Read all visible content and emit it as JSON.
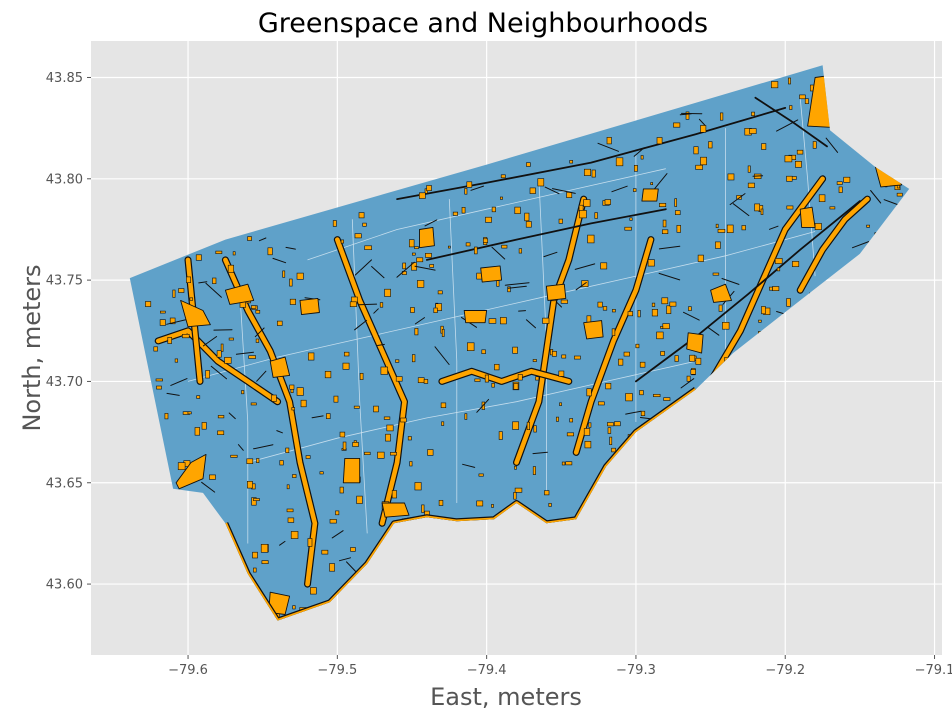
{
  "chart_data": {
    "type": "map",
    "title": "Greenspace and Neighbourhoods",
    "xlabel": "East, meters",
    "ylabel": "North, meters",
    "xlim": [
      -79.665,
      -79.095
    ],
    "ylim": [
      43.565,
      43.868
    ],
    "xticks": [
      {
        "value": -79.6,
        "label": "−79.6"
      },
      {
        "value": -79.5,
        "label": "−79.5"
      },
      {
        "value": -79.4,
        "label": "−79.4"
      },
      {
        "value": -79.3,
        "label": "−79.3"
      },
      {
        "value": -79.2,
        "label": "−79.2"
      },
      {
        "value": -79.1,
        "label": "−79.1"
      }
    ],
    "yticks": [
      {
        "value": 43.6,
        "label": "43.60"
      },
      {
        "value": 43.65,
        "label": "43.65"
      },
      {
        "value": 43.7,
        "label": "43.70"
      },
      {
        "value": 43.75,
        "label": "43.75"
      },
      {
        "value": 43.8,
        "label": "43.80"
      },
      {
        "value": 43.85,
        "label": "43.85"
      }
    ],
    "grid": true,
    "layers": [
      {
        "name": "neighbourhoods",
        "color": "#5fa1c9",
        "edgecolor": "#d6e7f3"
      },
      {
        "name": "greenspace",
        "color": "#ffa500",
        "edgecolor": "#111111"
      }
    ],
    "background": "#e5e5e5",
    "boundary": [
      [
        -79.639,
        43.751
      ],
      [
        -79.575,
        43.77
      ],
      [
        -79.4,
        43.807
      ],
      [
        -79.175,
        43.856
      ],
      [
        -79.17,
        43.824
      ],
      [
        -79.14,
        43.806
      ],
      [
        -79.117,
        43.795
      ],
      [
        -79.15,
        43.763
      ],
      [
        -79.19,
        43.74
      ],
      [
        -79.235,
        43.714
      ],
      [
        -79.26,
        43.696
      ],
      [
        -79.3,
        43.675
      ],
      [
        -79.32,
        43.658
      ],
      [
        -79.34,
        43.632
      ],
      [
        -79.36,
        43.63
      ],
      [
        -79.38,
        43.64
      ],
      [
        -79.395,
        43.632
      ],
      [
        -79.42,
        43.631
      ],
      [
        -79.44,
        43.633
      ],
      [
        -79.462,
        43.63
      ],
      [
        -79.48,
        43.61
      ],
      [
        -79.505,
        43.591
      ],
      [
        -79.54,
        43.582
      ],
      [
        -79.56,
        43.605
      ],
      [
        -79.575,
        43.63
      ],
      [
        -79.59,
        43.645
      ],
      [
        -79.61,
        43.647
      ],
      [
        -79.639,
        43.751
      ]
    ],
    "parks": [
      [
        [
          -79.606,
          43.647
        ],
        [
          -79.59,
          43.652
        ],
        [
          -79.588,
          43.664
        ],
        [
          -79.598,
          43.66
        ],
        [
          -79.608,
          43.65
        ]
      ],
      [
        [
          -79.495,
          43.662
        ],
        [
          -79.485,
          43.662
        ],
        [
          -79.485,
          43.65
        ],
        [
          -79.496,
          43.65
        ]
      ],
      [
        [
          -79.525,
          43.74
        ],
        [
          -79.513,
          43.741
        ],
        [
          -79.512,
          43.734
        ],
        [
          -79.524,
          43.733
        ]
      ],
      [
        [
          -79.415,
          43.735
        ],
        [
          -79.4,
          43.735
        ],
        [
          -79.401,
          43.729
        ],
        [
          -79.414,
          43.729
        ]
      ],
      [
        [
          -79.335,
          43.729
        ],
        [
          -79.323,
          43.73
        ],
        [
          -79.322,
          43.722
        ],
        [
          -79.333,
          43.721
        ]
      ],
      [
        [
          -79.265,
          43.724
        ],
        [
          -79.255,
          43.723
        ],
        [
          -79.256,
          43.714
        ],
        [
          -79.266,
          43.716
        ]
      ],
      [
        [
          -79.445,
          43.775
        ],
        [
          -79.436,
          43.776
        ],
        [
          -79.435,
          43.767
        ],
        [
          -79.445,
          43.766
        ]
      ],
      [
        [
          -79.404,
          43.756
        ],
        [
          -79.391,
          43.757
        ],
        [
          -79.39,
          43.75
        ],
        [
          -79.403,
          43.749
        ]
      ],
      [
        [
          -79.36,
          43.747
        ],
        [
          -79.348,
          43.748
        ],
        [
          -79.347,
          43.741
        ],
        [
          -79.359,
          43.74
        ]
      ],
      [
        [
          -79.19,
          43.785
        ],
        [
          -79.182,
          43.786
        ],
        [
          -79.18,
          43.776
        ],
        [
          -79.189,
          43.776
        ]
      ],
      [
        [
          -79.295,
          43.795
        ],
        [
          -79.285,
          43.795
        ],
        [
          -79.286,
          43.789
        ],
        [
          -79.296,
          43.789
        ]
      ],
      [
        [
          -79.18,
          43.85
        ],
        [
          -79.16,
          43.852
        ],
        [
          -79.16,
          43.825
        ],
        [
          -79.185,
          43.826
        ]
      ],
      [
        [
          -79.14,
          43.807
        ],
        [
          -79.125,
          43.802
        ],
        [
          -79.122,
          43.797
        ],
        [
          -79.136,
          43.796
        ]
      ],
      [
        [
          -79.32,
          43.64
        ],
        [
          -79.31,
          43.646
        ],
        [
          -79.312,
          43.632
        ],
        [
          -79.322,
          43.634
        ]
      ],
      [
        [
          -79.47,
          43.64
        ],
        [
          -79.455,
          43.64
        ],
        [
          -79.452,
          43.634
        ],
        [
          -79.468,
          43.633
        ]
      ],
      [
        [
          -79.545,
          43.596
        ],
        [
          -79.532,
          43.594
        ],
        [
          -79.535,
          43.585
        ],
        [
          -79.546,
          43.586
        ]
      ],
      [
        [
          -79.575,
          43.745
        ],
        [
          -79.56,
          43.748
        ],
        [
          -79.556,
          43.74
        ],
        [
          -79.572,
          43.738
        ]
      ],
      [
        [
          -79.605,
          43.74
        ],
        [
          -79.59,
          43.735
        ],
        [
          -79.585,
          43.728
        ],
        [
          -79.6,
          43.727
        ]
      ],
      [
        [
          -79.545,
          43.71
        ],
        [
          -79.535,
          43.712
        ],
        [
          -79.532,
          43.703
        ],
        [
          -79.543,
          43.702
        ]
      ],
      [
        [
          -79.25,
          43.745
        ],
        [
          -79.24,
          43.748
        ],
        [
          -79.236,
          43.74
        ],
        [
          -79.248,
          43.739
        ]
      ]
    ],
    "ravines": [
      [
        [
          -79.52,
          43.6
        ],
        [
          -79.515,
          43.63
        ],
        [
          -79.525,
          43.66
        ],
        [
          -79.532,
          43.69
        ],
        [
          -79.545,
          43.715
        ],
        [
          -79.56,
          43.735
        ],
        [
          -79.575,
          43.76
        ]
      ],
      [
        [
          -79.47,
          43.63
        ],
        [
          -79.46,
          43.66
        ],
        [
          -79.455,
          43.69
        ],
        [
          -79.47,
          43.715
        ],
        [
          -79.485,
          43.74
        ],
        [
          -79.5,
          43.77
        ]
      ],
      [
        [
          -79.38,
          43.66
        ],
        [
          -79.365,
          43.69
        ],
        [
          -79.36,
          43.715
        ],
        [
          -79.355,
          43.74
        ],
        [
          -79.345,
          43.76
        ],
        [
          -79.335,
          43.79
        ]
      ],
      [
        [
          -79.34,
          43.665
        ],
        [
          -79.33,
          43.69
        ],
        [
          -79.315,
          43.72
        ],
        [
          -79.3,
          43.745
        ],
        [
          -79.29,
          43.77
        ]
      ],
      [
        [
          -79.25,
          43.7
        ],
        [
          -79.23,
          43.725
        ],
        [
          -79.215,
          43.75
        ],
        [
          -79.2,
          43.775
        ],
        [
          -79.175,
          43.8
        ]
      ],
      [
        [
          -79.19,
          43.745
        ],
        [
          -79.175,
          43.765
        ],
        [
          -79.16,
          43.78
        ],
        [
          -79.145,
          43.79
        ]
      ],
      [
        [
          -79.62,
          43.72
        ],
        [
          -79.6,
          43.725
        ],
        [
          -79.58,
          43.71
        ],
        [
          -79.56,
          43.7
        ],
        [
          -79.54,
          43.69
        ]
      ],
      [
        [
          -79.43,
          43.7
        ],
        [
          -79.41,
          43.705
        ],
        [
          -79.39,
          43.7
        ],
        [
          -79.37,
          43.705
        ],
        [
          -79.345,
          43.7
        ]
      ],
      [
        [
          -79.6,
          43.76
        ],
        [
          -79.596,
          43.73
        ],
        [
          -79.592,
          43.7
        ]
      ]
    ],
    "railways": [
      [
        [
          -79.46,
          43.79
        ],
        [
          -79.4,
          43.798
        ],
        [
          -79.33,
          43.808
        ],
        [
          -79.26,
          43.822
        ],
        [
          -79.2,
          43.835
        ]
      ],
      [
        [
          -79.44,
          43.76
        ],
        [
          -79.38,
          43.77
        ],
        [
          -79.33,
          43.778
        ],
        [
          -79.28,
          43.785
        ]
      ],
      [
        [
          -79.3,
          43.7
        ],
        [
          -79.26,
          43.722
        ],
        [
          -79.225,
          43.743
        ],
        [
          -79.19,
          43.765
        ],
        [
          -79.15,
          43.789
        ]
      ],
      [
        [
          -79.22,
          43.84
        ],
        [
          -79.195,
          43.828
        ],
        [
          -79.172,
          43.816
        ]
      ]
    ],
    "neighbourhood_lines": [
      [
        [
          -79.6,
          43.7
        ],
        [
          -79.54,
          43.712
        ],
        [
          -79.48,
          43.722
        ],
        [
          -79.42,
          43.732
        ],
        [
          -79.36,
          43.742
        ],
        [
          -79.3,
          43.752
        ],
        [
          -79.24,
          43.762
        ],
        [
          -79.18,
          43.774
        ]
      ],
      [
        [
          -79.56,
          43.66
        ],
        [
          -79.5,
          43.672
        ],
        [
          -79.44,
          43.682
        ],
        [
          -79.38,
          43.69
        ],
        [
          -79.32,
          43.7
        ],
        [
          -79.26,
          43.71
        ]
      ],
      [
        [
          -79.52,
          43.76
        ],
        [
          -79.46,
          43.775
        ],
        [
          -79.4,
          43.785
        ],
        [
          -79.34,
          43.795
        ],
        [
          -79.28,
          43.805
        ]
      ],
      [
        [
          -79.56,
          43.62
        ],
        [
          -79.56,
          43.68
        ],
        [
          -79.565,
          43.74
        ]
      ],
      [
        [
          -79.48,
          43.625
        ],
        [
          -79.485,
          43.69
        ],
        [
          -79.49,
          43.78
        ]
      ],
      [
        [
          -79.42,
          43.64
        ],
        [
          -79.42,
          43.71
        ],
        [
          -79.425,
          43.79
        ]
      ],
      [
        [
          -79.36,
          43.645
        ],
        [
          -79.36,
          43.72
        ],
        [
          -79.365,
          43.8
        ]
      ],
      [
        [
          -79.3,
          43.68
        ],
        [
          -79.3,
          43.75
        ],
        [
          -79.3,
          43.812
        ]
      ],
      [
        [
          -79.24,
          43.712
        ],
        [
          -79.24,
          43.78
        ],
        [
          -79.24,
          43.825
        ]
      ],
      [
        [
          -79.18,
          43.752
        ],
        [
          -79.185,
          43.8
        ],
        [
          -79.19,
          43.84
        ]
      ]
    ],
    "scatter_park_count": 380
  }
}
